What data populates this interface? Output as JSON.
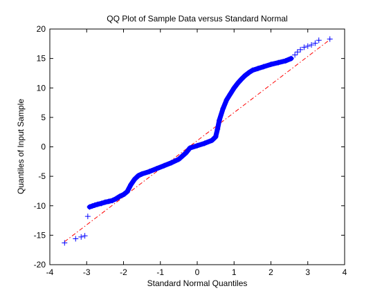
{
  "chart_data": {
    "type": "scatter",
    "title": "QQ Plot of Sample Data versus Standard Normal",
    "xlabel": "Standard Normal Quantiles",
    "ylabel": "Quantiles of Input Sample",
    "xlim": [
      -4,
      4
    ],
    "ylim": [
      -20,
      20
    ],
    "x_ticks": [
      -4,
      -3,
      -2,
      -1,
      0,
      1,
      2,
      3,
      4
    ],
    "y_ticks": [
      -20,
      -15,
      -10,
      -5,
      0,
      5,
      10,
      15,
      20
    ],
    "x_tick_labels": [
      "-4",
      "-3",
      "-2",
      "-1",
      "0",
      "1",
      "2",
      "3",
      "4"
    ],
    "y_tick_labels": [
      "-20",
      "-15",
      "-10",
      "-5",
      "0",
      "5",
      "10",
      "15",
      "20"
    ],
    "grid": false,
    "legend": "none",
    "marker": "+",
    "marker_color": "#0000ff",
    "reference_line": {
      "style": "dash-dot",
      "color": "#ff0000",
      "points": [
        [
          -3.6,
          -16.1
        ],
        [
          3.6,
          18.2
        ]
      ]
    },
    "sample_points": [
      [
        -3.6,
        -16.3
      ],
      [
        -3.3,
        -15.6
      ],
      [
        -3.15,
        -15.3
      ],
      [
        -3.05,
        -15.1
      ],
      [
        -2.97,
        -11.8
      ],
      [
        -2.92,
        -10.2
      ],
      [
        -2.85,
        -10.05
      ],
      [
        -2.78,
        -9.9
      ],
      [
        -2.7,
        -9.75
      ],
      [
        -2.6,
        -9.6
      ],
      [
        -2.5,
        -9.4
      ],
      [
        -2.4,
        -9.25
      ],
      [
        -2.3,
        -9.1
      ],
      [
        -2.2,
        -8.8
      ],
      [
        -2.1,
        -8.4
      ],
      [
        -2.0,
        -8.1
      ],
      [
        -1.9,
        -7.6
      ],
      [
        -1.8,
        -6.4
      ],
      [
        -1.7,
        -5.5
      ],
      [
        -1.6,
        -4.9
      ],
      [
        -1.5,
        -4.6
      ],
      [
        -1.3,
        -4.2
      ],
      [
        -1.1,
        -3.7
      ],
      [
        -0.9,
        -3.2
      ],
      [
        -0.7,
        -2.7
      ],
      [
        -0.5,
        -2.1
      ],
      [
        -0.3,
        -1.0
      ],
      [
        -0.2,
        -0.2
      ],
      [
        0.0,
        0.2
      ],
      [
        0.2,
        0.6
      ],
      [
        0.4,
        1.1
      ],
      [
        0.5,
        1.7
      ],
      [
        0.55,
        3.0
      ],
      [
        0.6,
        4.5
      ],
      [
        0.7,
        6.5
      ],
      [
        0.8,
        8.0
      ],
      [
        0.9,
        9.0
      ],
      [
        1.0,
        10.0
      ],
      [
        1.1,
        10.8
      ],
      [
        1.2,
        11.5
      ],
      [
        1.3,
        12.1
      ],
      [
        1.4,
        12.6
      ],
      [
        1.5,
        13.0
      ],
      [
        1.65,
        13.3
      ],
      [
        1.8,
        13.6
      ],
      [
        2.0,
        14.0
      ],
      [
        2.2,
        14.3
      ],
      [
        2.4,
        14.6
      ],
      [
        2.55,
        15.0
      ],
      [
        2.65,
        15.6
      ],
      [
        2.72,
        16.1
      ],
      [
        2.8,
        16.5
      ],
      [
        2.9,
        16.9
      ],
      [
        3.0,
        17.1
      ],
      [
        3.1,
        17.3
      ],
      [
        3.2,
        17.6
      ],
      [
        3.3,
        18.1
      ],
      [
        3.6,
        18.3
      ]
    ]
  }
}
